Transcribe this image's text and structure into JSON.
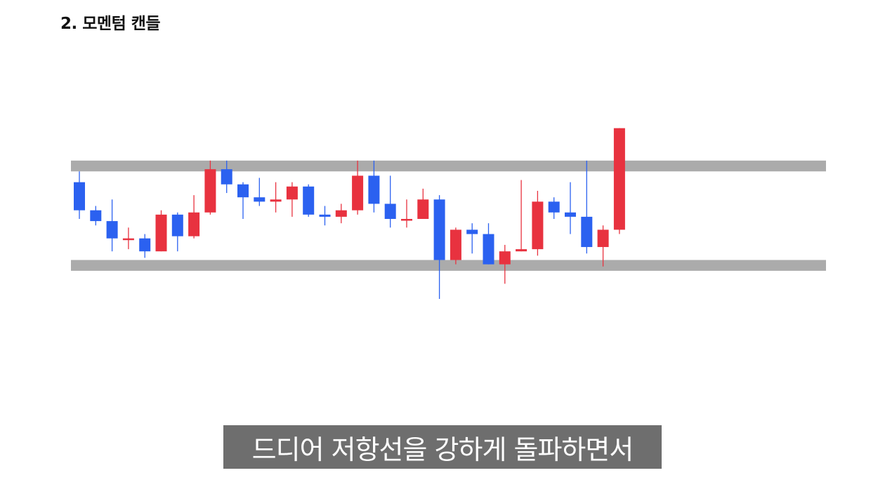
{
  "header": {
    "title": "2. 모멘텀 캔들"
  },
  "caption": {
    "text": "드디어 저항선을 강하게 돌파하면서"
  },
  "colors": {
    "bullish": "#e8323f",
    "bearish": "#2b61f0",
    "zone": "#ababab",
    "caption_bg": "#6e6e6e"
  },
  "chart_data": {
    "type": "candlestick",
    "title": "",
    "xlabel": "",
    "ylabel": "",
    "axes_visible": false,
    "grid": false,
    "ylim": [
      0,
      100
    ],
    "zones": [
      {
        "name": "resistance",
        "low": 72,
        "high": 77
      },
      {
        "name": "support",
        "low": 26,
        "high": 31
      }
    ],
    "candles": [
      {
        "open": 67,
        "close": 54,
        "high": 72,
        "low": 50
      },
      {
        "open": 54,
        "close": 49,
        "high": 56,
        "low": 47
      },
      {
        "open": 49,
        "close": 41,
        "high": 59,
        "low": 35
      },
      {
        "open": 41,
        "close": 41,
        "high": 46,
        "low": 36
      },
      {
        "open": 41,
        "close": 35,
        "high": 43,
        "low": 32
      },
      {
        "open": 35,
        "close": 52,
        "high": 54,
        "low": 35
      },
      {
        "open": 52,
        "close": 42,
        "high": 53,
        "low": 35
      },
      {
        "open": 42,
        "close": 53,
        "high": 61,
        "low": 41
      },
      {
        "open": 53,
        "close": 73,
        "high": 77,
        "low": 52
      },
      {
        "open": 73,
        "close": 66,
        "high": 77,
        "low": 62
      },
      {
        "open": 66,
        "close": 60,
        "high": 67,
        "low": 50
      },
      {
        "open": 60,
        "close": 58,
        "high": 69,
        "low": 56
      },
      {
        "open": 58,
        "close": 59,
        "high": 67,
        "low": 53
      },
      {
        "open": 59,
        "close": 65,
        "high": 67,
        "low": 51
      },
      {
        "open": 65,
        "close": 52,
        "high": 66,
        "low": 51
      },
      {
        "open": 52,
        "close": 51,
        "high": 56,
        "low": 47
      },
      {
        "open": 51,
        "close": 54,
        "high": 57,
        "low": 48
      },
      {
        "open": 54,
        "close": 70,
        "high": 77,
        "low": 52
      },
      {
        "open": 70,
        "close": 57,
        "high": 77,
        "low": 53
      },
      {
        "open": 57,
        "close": 50,
        "high": 70,
        "low": 46
      },
      {
        "open": 50,
        "close": 50,
        "high": 59,
        "low": 46
      },
      {
        "open": 50,
        "close": 59,
        "high": 64,
        "low": 51
      },
      {
        "open": 59,
        "close": 31,
        "high": 61,
        "low": 13
      },
      {
        "open": 31,
        "close": 45,
        "high": 46,
        "low": 29
      },
      {
        "open": 45,
        "close": 43,
        "high": 48,
        "low": 34
      },
      {
        "open": 43,
        "close": 29,
        "high": 48,
        "low": 29
      },
      {
        "open": 29,
        "close": 35,
        "high": 38,
        "low": 20
      },
      {
        "open": 35,
        "close": 36,
        "high": 68,
        "low": 35
      },
      {
        "open": 36,
        "close": 58,
        "high": 63,
        "low": 33
      },
      {
        "open": 58,
        "close": 53,
        "high": 60,
        "low": 50
      },
      {
        "open": 53,
        "close": 51,
        "high": 67,
        "low": 43
      },
      {
        "open": 51,
        "close": 37,
        "high": 77,
        "low": 34
      },
      {
        "open": 37,
        "close": 45,
        "high": 47,
        "low": 28
      },
      {
        "open": 45,
        "close": 92,
        "high": 92,
        "low": 43
      }
    ]
  }
}
